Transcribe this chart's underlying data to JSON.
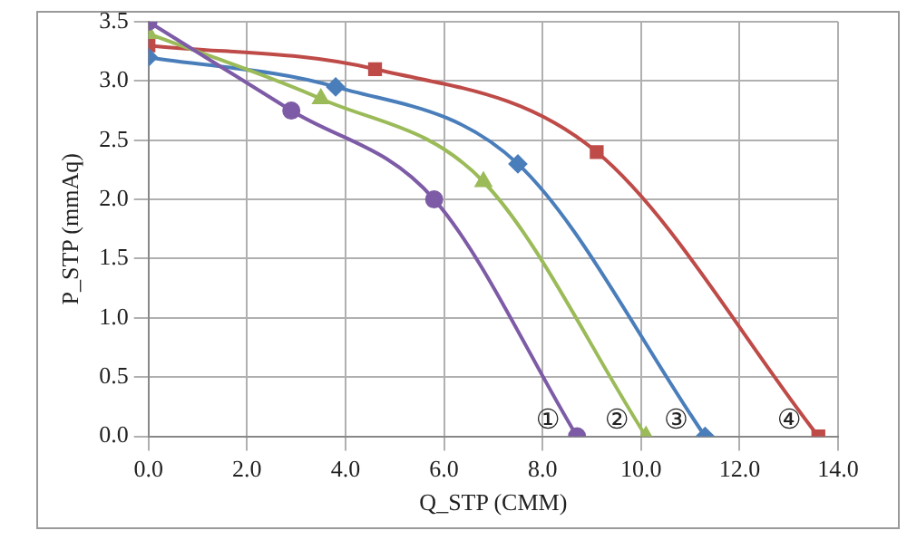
{
  "chart_data": {
    "type": "line",
    "xlabel": "Q_STP (CMM)",
    "ylabel": "P_STP (mmAq)",
    "xlim": [
      0,
      14
    ],
    "ylim": [
      0,
      3.5
    ],
    "xticks": [
      {
        "value": 0,
        "label": "0.0"
      },
      {
        "value": 2,
        "label": "2.0"
      },
      {
        "value": 4,
        "label": "4.0"
      },
      {
        "value": 6,
        "label": "6.0"
      },
      {
        "value": 8,
        "label": "8.0"
      },
      {
        "value": 10,
        "label": "10.0"
      },
      {
        "value": 12,
        "label": "12.0"
      },
      {
        "value": 14,
        "label": "14.0"
      }
    ],
    "yticks": [
      {
        "value": 0,
        "label": "0.0"
      },
      {
        "value": 0.5,
        "label": "0.5"
      },
      {
        "value": 1,
        "label": "1.0"
      },
      {
        "value": 1.5,
        "label": "1.5"
      },
      {
        "value": 2,
        "label": "2.0"
      },
      {
        "value": 2.5,
        "label": "2.5"
      },
      {
        "value": 3,
        "label": "3.0"
      },
      {
        "value": 3.5,
        "label": "3.5"
      }
    ],
    "grid": true,
    "legend": false,
    "series": [
      {
        "color": "#7d5ba6",
        "marker": "circle",
        "x": [
          0,
          2.9,
          5.8,
          8.7
        ],
        "values": [
          3.5,
          2.75,
          2.0,
          0
        ]
      },
      {
        "color": "#9bbb59",
        "marker": "triangle",
        "x": [
          0,
          3.5,
          6.8,
          10.1
        ],
        "values": [
          3.4,
          2.85,
          2.15,
          0
        ]
      },
      {
        "color": "#4a7ebb",
        "marker": "diamond",
        "x": [
          0,
          3.8,
          7.5,
          11.3
        ],
        "values": [
          3.2,
          2.95,
          2.3,
          0
        ]
      },
      {
        "color": "#be4b48",
        "marker": "square",
        "x": [
          0,
          4.6,
          9.1,
          13.6
        ],
        "values": [
          3.3,
          3.1,
          2.4,
          0
        ]
      }
    ],
    "annotations": [
      "①",
      "②",
      "③",
      "④"
    ]
  }
}
